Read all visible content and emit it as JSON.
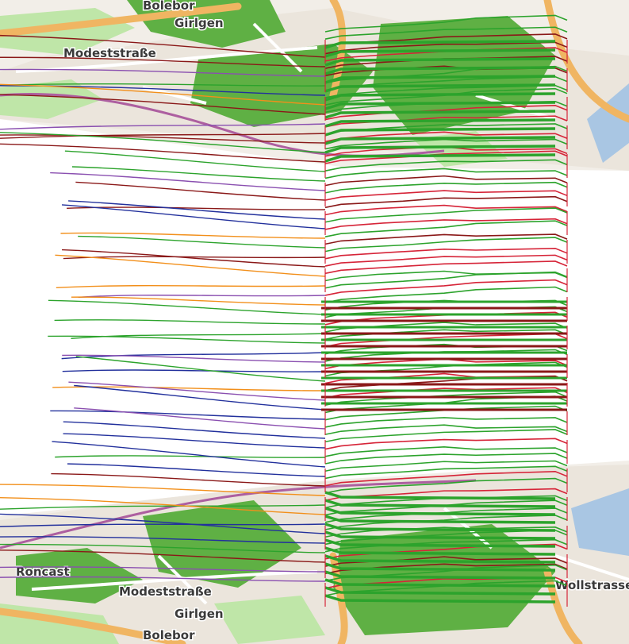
{
  "view": {
    "type": "3d-trajectory-stack",
    "basemap": "street-map",
    "colors": {
      "water": "#a9c6e3",
      "forest": "#5fb044",
      "park": "#bfe6a8",
      "urban": "#ebe5dc",
      "road_major": "#f0b562",
      "road_minor": "#ffffff",
      "rail": "#ad5fa0",
      "trajectory_green": "#2ca32c",
      "trajectory_red": "#d62438",
      "trajectory_blue": "#22309c",
      "trajectory_darkred": "#8a1818",
      "trajectory_orange": "#f28f1a",
      "trajectory_purple": "#8a4fb0"
    }
  },
  "top_layer": {
    "labels": [
      {
        "id": "bolebor",
        "text": "Bolebor"
      },
      {
        "id": "girlgen",
        "text": "Girlgen"
      },
      {
        "id": "modest",
        "text": "Modeststraße"
      }
    ]
  },
  "bottom_layer": {
    "labels": [
      {
        "id": "roncast",
        "text": "Roncast"
      },
      {
        "id": "modest",
        "text": "Modeststraße"
      },
      {
        "id": "girlgen",
        "text": "Girlgen"
      },
      {
        "id": "bolebor",
        "text": "Bolebor"
      },
      {
        "id": "wollstrasse",
        "text": "Wollstrasse"
      }
    ]
  }
}
